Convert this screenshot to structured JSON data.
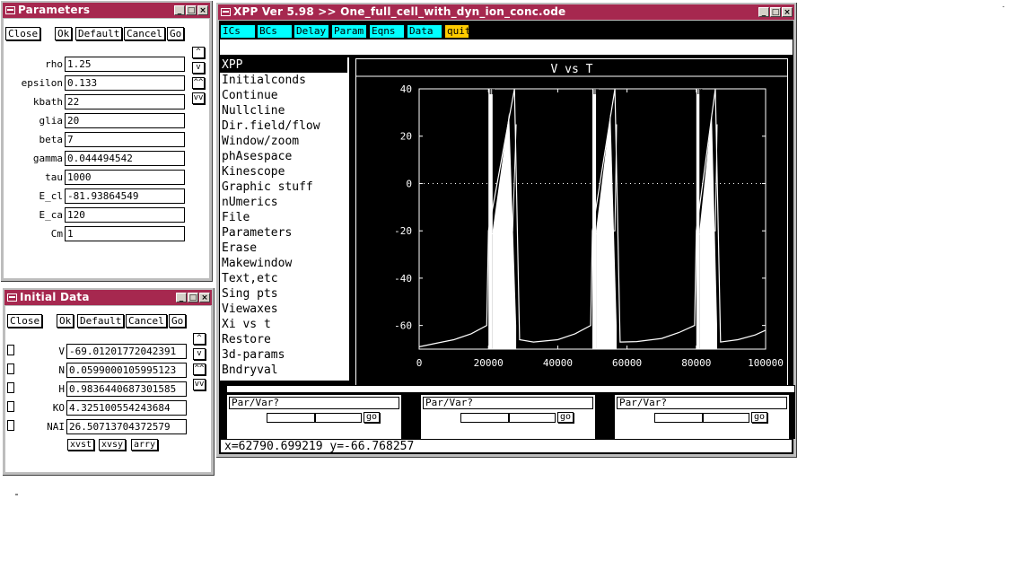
{
  "parameters_window": {
    "title": "Parameters",
    "buttons": {
      "close": "Close",
      "ok": "Ok",
      "default": "Default",
      "cancel": "Cancel",
      "go": "Go"
    },
    "scroll": {
      "up": "^",
      "down": "v",
      "page_up": "^^",
      "page_down": "vv"
    },
    "params": [
      {
        "name": "rho",
        "value": "1.25"
      },
      {
        "name": "epsilon",
        "value": "0.133"
      },
      {
        "name": "kbath",
        "value": "22"
      },
      {
        "name": "glia",
        "value": "20"
      },
      {
        "name": "beta",
        "value": "7"
      },
      {
        "name": "gamma",
        "value": "0.044494542"
      },
      {
        "name": "tau",
        "value": "1000"
      },
      {
        "name": "E_cl",
        "value": "-81.93864549"
      },
      {
        "name": "E_ca",
        "value": "120"
      },
      {
        "name": "Cm",
        "value": "1"
      }
    ]
  },
  "initial_data_window": {
    "title": "Initial Data",
    "buttons": {
      "close": "Close",
      "ok": "Ok",
      "default": "Default",
      "cancel": "Cancel",
      "go": "Go"
    },
    "scroll": {
      "up": "^",
      "down": "v",
      "page_up": "^^",
      "page_down": "vv"
    },
    "vars": [
      {
        "name": "V",
        "value": "-69.01201772042391"
      },
      {
        "name": "N",
        "value": "0.0599000105995123"
      },
      {
        "name": "H",
        "value": "0.9836440687301585"
      },
      {
        "name": "KO",
        "value": "4.325100554243684"
      },
      {
        "name": "NAI",
        "value": "26.50713704372579"
      }
    ],
    "bottom_buttons": {
      "xvst": "xvst",
      "xvsy": "xvsy",
      "arry": "arry"
    }
  },
  "xpp_window": {
    "title": "XPP Ver 5.98 >> One_full_cell_with_dyn_ion_conc.ode",
    "toolbar": [
      {
        "label": "ICs",
        "color": "#00ffff"
      },
      {
        "label": "BCs",
        "color": "#00ffff"
      },
      {
        "label": "Delay",
        "color": "#00ffff"
      },
      {
        "label": "Param",
        "color": "#00ffff"
      },
      {
        "label": "Eqns",
        "color": "#00ffff"
      },
      {
        "label": "Data",
        "color": "#00ffff"
      },
      {
        "label": "quit",
        "color": "#ffcc00"
      }
    ],
    "menu_title": "XPP",
    "menu_items": [
      "Initialconds",
      "Continue",
      "Nullcline",
      "Dir.field/flow",
      "Window/zoom",
      "phAsespace",
      "Kinescope",
      "Graphic stuff",
      "nUmerics",
      "File",
      "Parameters",
      "Erase",
      "Makewindow",
      "Text,etc",
      "Sing pts",
      "Viewaxes",
      "Xi vs t",
      "Restore",
      "3d-params",
      "Bndryval"
    ],
    "sliders": [
      {
        "label": "Par/Var?",
        "go": "go"
      },
      {
        "label": "Par/Var?",
        "go": "go"
      },
      {
        "label": "Par/Var?",
        "go": "go"
      }
    ],
    "status": "x=62790.699219 y=-66.768257"
  },
  "chart_data": {
    "type": "line",
    "title": "V vs T",
    "xlim": [
      0,
      100000
    ],
    "ylim": [
      -70,
      40
    ],
    "x_ticks": [
      "0",
      "20000",
      "40000",
      "60000",
      "80000",
      "100000"
    ],
    "y_ticks": [
      "40",
      "20",
      "0",
      "-20",
      "-40",
      "-60"
    ],
    "x_tick_values": [
      0,
      20000,
      40000,
      60000,
      80000,
      100000
    ],
    "y_tick_values": [
      40,
      20,
      0,
      -20,
      -40,
      -60
    ],
    "zero_line": true,
    "bursts": [
      {
        "start": 20000,
        "end": 28000
      },
      {
        "start": 50000,
        "end": 57000
      },
      {
        "start": 80000,
        "end": 86000
      }
    ],
    "baseline_trace": {
      "x": [
        0,
        5000,
        10000,
        15000,
        19500,
        20000,
        27500,
        29000,
        33000,
        40000,
        45000,
        49500,
        50000,
        56500,
        58000,
        62790,
        70000,
        75000,
        79500,
        80000,
        85500,
        87000,
        92000,
        97000,
        100000
      ],
      "y": [
        -69,
        -67.5,
        -66,
        -63.5,
        -60,
        -20,
        40,
        -66,
        -67,
        -66,
        -63.5,
        -60,
        -20,
        40,
        -67,
        -66.8,
        -65.5,
        -63,
        -60,
        -20,
        40,
        -67,
        -66,
        -64,
        -62
      ]
    },
    "secondary_trace": {
      "x": [
        20000,
        23000,
        27000,
        28000,
        50000,
        53000,
        56500,
        57000,
        80000,
        83000,
        85500,
        86000
      ],
      "y": [
        -22,
        -20,
        -20,
        25,
        -22,
        -20,
        -20,
        25,
        -22,
        -20,
        -20,
        25
      ]
    }
  }
}
